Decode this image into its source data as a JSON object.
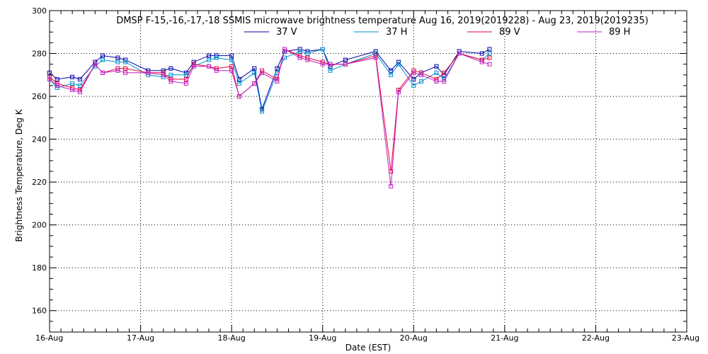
{
  "chart_data": {
    "type": "line",
    "title": "DMSP F-15,-16,-17,-18 SSMIS microwave brightness temperature Aug 16, 2019(2019228) - Aug 23, 2019(2019235)",
    "xlabel": "Date (EST)",
    "ylabel": "Brightness Temperature, Deg K",
    "xlim": [
      "2019-08-16 00:00",
      "2019-08-23 00:00"
    ],
    "ylim": [
      150,
      300
    ],
    "x_ticks": [
      "16-Aug",
      "17-Aug",
      "18-Aug",
      "19-Aug",
      "20-Aug",
      "21-Aug",
      "22-Aug",
      "23-Aug"
    ],
    "y_ticks": [
      160,
      180,
      200,
      220,
      240,
      260,
      280,
      300
    ],
    "grid": true,
    "legend_position": "top",
    "x": [
      "2019-08-16 00:00",
      "2019-08-16 02:00",
      "2019-08-16 06:00",
      "2019-08-16 08:00",
      "2019-08-16 12:00",
      "2019-08-16 14:00",
      "2019-08-16 18:00",
      "2019-08-16 20:00",
      "2019-08-17 02:00",
      "2019-08-17 06:00",
      "2019-08-17 08:00",
      "2019-08-17 12:00",
      "2019-08-17 14:00",
      "2019-08-17 18:00",
      "2019-08-17 20:00",
      "2019-08-18 00:00",
      "2019-08-18 02:00",
      "2019-08-18 06:00",
      "2019-08-18 08:00",
      "2019-08-18 12:00",
      "2019-08-18 14:00",
      "2019-08-18 18:00",
      "2019-08-18 20:00",
      "2019-08-19 00:00",
      "2019-08-19 02:00",
      "2019-08-19 06:00",
      "2019-08-19 14:00",
      "2019-08-19 18:00",
      "2019-08-19 20:00",
      "2019-08-20 00:00",
      "2019-08-20 02:00",
      "2019-08-20 06:00",
      "2019-08-20 08:00",
      "2019-08-20 12:00",
      "2019-08-20 18:00",
      "2019-08-20 20:00"
    ],
    "series": [
      {
        "name": "37 V",
        "color": "#0000a8",
        "values": [
          271,
          268,
          269,
          268,
          276,
          279,
          278,
          277,
          272,
          272,
          273,
          271,
          276,
          279,
          279,
          279,
          268,
          273,
          254,
          273,
          281,
          282,
          281,
          282,
          274,
          277,
          281,
          272,
          276,
          268,
          271,
          274,
          270,
          281,
          280,
          282
        ]
      },
      {
        "name": "37 H",
        "color": "#0090d0",
        "values": [
          268,
          264,
          266,
          265,
          274,
          277,
          276,
          276,
          270,
          269,
          270,
          270,
          274,
          277,
          278,
          277,
          266,
          271,
          253,
          271,
          278,
          281,
          280,
          282,
          272,
          275,
          280,
          270,
          275,
          265,
          267,
          271,
          268,
          280,
          277,
          280
        ]
      },
      {
        "name": "89 V",
        "color": "#e8003c",
        "values": [
          269,
          266,
          264,
          263,
          275,
          271,
          273,
          273,
          271,
          271,
          268,
          268,
          275,
          274,
          273,
          274,
          260,
          266,
          272,
          268,
          282,
          279,
          278,
          276,
          275,
          275,
          279,
          225,
          263,
          272,
          271,
          268,
          271,
          280,
          277,
          278
        ]
      },
      {
        "name": "89 H",
        "color": "#c020c0",
        "values": [
          268,
          265,
          263,
          262,
          275,
          271,
          272,
          271,
          271,
          270,
          267,
          266,
          274,
          274,
          272,
          272,
          260,
          266,
          271,
          267,
          282,
          278,
          277,
          275,
          275,
          275,
          278,
          218,
          262,
          271,
          270,
          267,
          267,
          280,
          276,
          275
        ]
      }
    ]
  }
}
